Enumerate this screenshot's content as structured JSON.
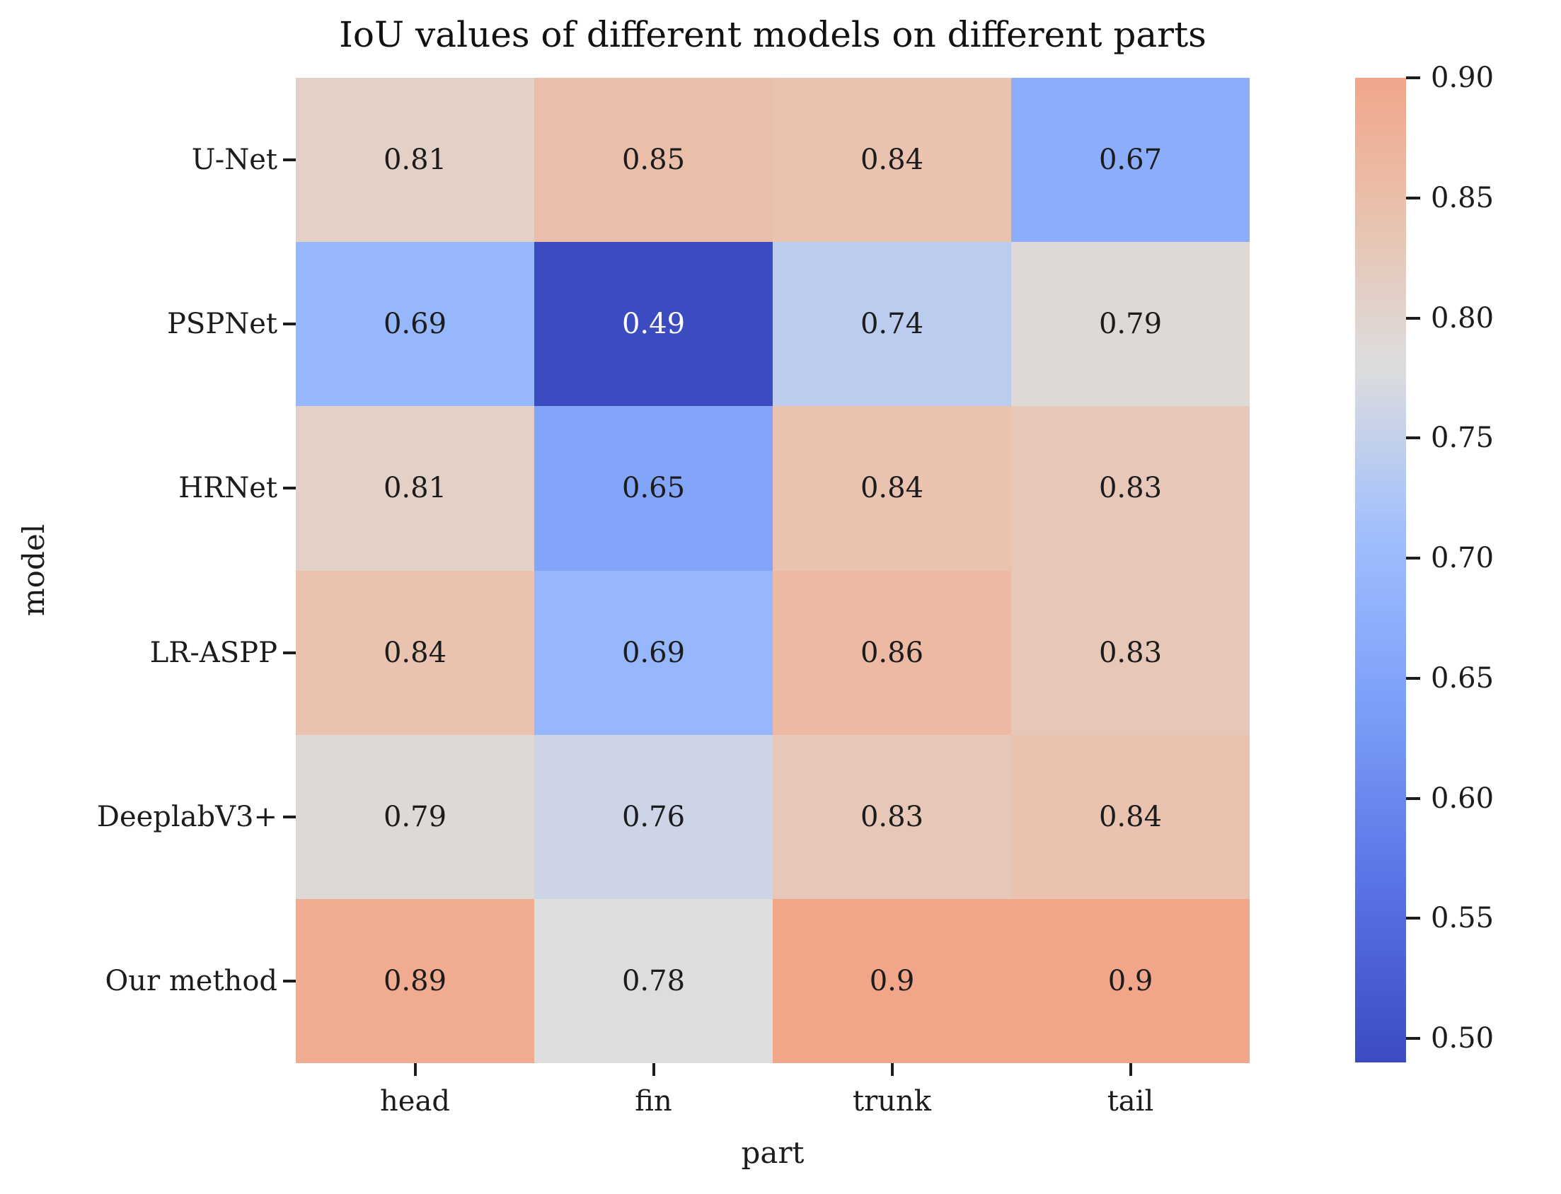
{
  "figure": {
    "background": "#ffffff",
    "text_color": "#1c1c1c"
  },
  "chart_data": {
    "type": "heatmap",
    "title": "IoU values of different models on different parts",
    "xlabel": "part",
    "ylabel": "model",
    "x_categories": [
      "head",
      "fin",
      "trunk",
      "tail"
    ],
    "y_categories": [
      "U-Net",
      "PSPNet",
      "HRNet",
      "LR-ASPP",
      "DeeplabV3+",
      "Our method"
    ],
    "values": [
      [
        0.81,
        0.85,
        0.84,
        0.67
      ],
      [
        0.69,
        0.49,
        0.74,
        0.79
      ],
      [
        0.81,
        0.65,
        0.84,
        0.83
      ],
      [
        0.84,
        0.69,
        0.86,
        0.83
      ],
      [
        0.79,
        0.76,
        0.83,
        0.84
      ],
      [
        0.89,
        0.78,
        0.9,
        0.9
      ]
    ],
    "value_labels": [
      [
        "0.81",
        "0.85",
        "0.84",
        "0.67"
      ],
      [
        "0.69",
        "0.49",
        "0.74",
        "0.79"
      ],
      [
        "0.81",
        "0.65",
        "0.84",
        "0.83"
      ],
      [
        "0.84",
        "0.69",
        "0.86",
        "0.83"
      ],
      [
        "0.79",
        "0.76",
        "0.83",
        "0.84"
      ],
      [
        "0.89",
        "0.78",
        "0.9",
        "0.9"
      ]
    ],
    "colormap": "coolwarm",
    "colormap_min_color": "#3b4cc0",
    "colormap_mid_color": "#dddddd",
    "colormap_max_visible_color": "#f1a68a",
    "norm": {
      "vmin": 0.49,
      "vmax_effective": 1.07
    },
    "grid": false,
    "colorbar": {
      "position": "right",
      "top_value": 0.9,
      "bottom_value": 0.49,
      "tick_labels": [
        "0.90",
        "0.85",
        "0.80",
        "0.75",
        "0.70",
        "0.65",
        "0.60",
        "0.55",
        "0.50"
      ],
      "tick_values": [
        0.9,
        0.85,
        0.8,
        0.75,
        0.7,
        0.65,
        0.6,
        0.55,
        0.5
      ]
    },
    "annotation_text_color": "#1c1c1c",
    "annotation_text_color_on_dark": "#ffffff"
  }
}
